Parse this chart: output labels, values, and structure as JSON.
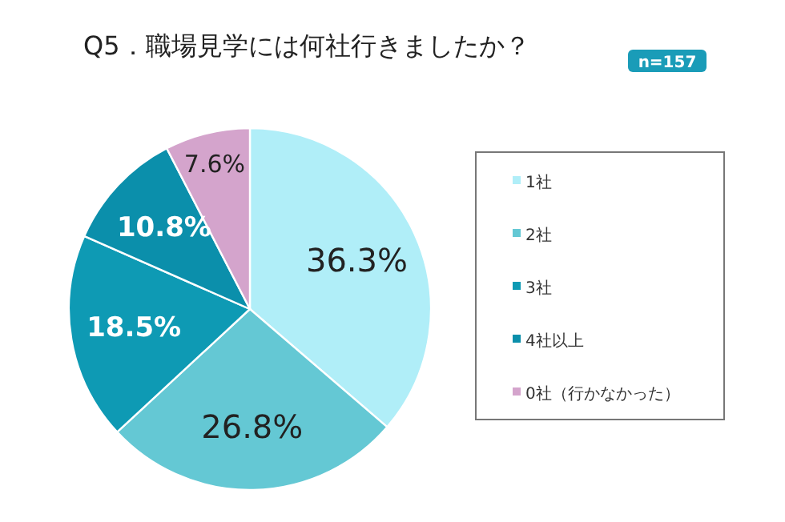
{
  "chart_data": {
    "type": "pie",
    "title": "Q5．職場見学には何社行きましたか？",
    "subtitle": "n=157",
    "categories": [
      "1社",
      "2社",
      "3社",
      "4社以上",
      "0社（行かなかった）"
    ],
    "values": [
      36.3,
      26.8,
      18.5,
      10.8,
      7.6
    ],
    "colors": [
      "#b0eef8",
      "#64c8d4",
      "#0e9ab4",
      "#0b8fab",
      "#d4a4cc"
    ],
    "value_labels": [
      "36.3%",
      "26.8%",
      "18.5%",
      "10.8%",
      "7.6%"
    ],
    "legend": "right"
  }
}
